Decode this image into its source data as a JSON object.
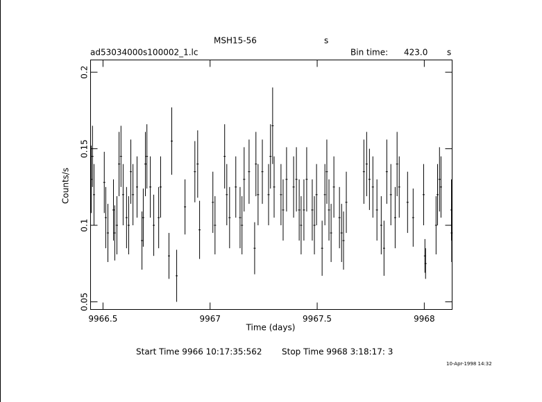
{
  "chart_data": {
    "type": "errorbar",
    "title": "MSH15-56",
    "title_unit": "s",
    "file_name": "ad53034000s100002_1.lc",
    "bin_time_label": "Bin time:",
    "bin_time": "423.0",
    "bin_time_unit": "s",
    "x_label": "Time (days)",
    "y_label": "Counts/s",
    "start_time": "Start Time  9966 10:17:35:562",
    "stop_time": "Stop Time  9968  3:18:17:  3",
    "date": "10-Apr-1998 14:32",
    "color": "#000000",
    "xlim": [
      9966.442,
      9968.13
    ],
    "ylim": [
      0.045,
      0.208
    ],
    "xticks": [
      9966.5,
      9967,
      9967.5,
      9968
    ],
    "yticks": [
      0.05,
      0.1,
      0.15,
      0.2
    ],
    "x": [
      9966.445,
      9966.451,
      9966.458,
      9966.506,
      9966.513,
      9966.523,
      9966.549,
      9966.555,
      9966.565,
      9966.575,
      9966.584,
      9966.594,
      9966.61,
      9966.62,
      9966.63,
      9966.64,
      9966.659,
      9966.682,
      9966.688,
      9966.698,
      9966.705,
      9966.721,
      9966.737,
      9966.76,
      9966.769,
      9966.808,
      9966.821,
      9966.844,
      9966.883,
      9966.929,
      9966.942,
      9966.951,
      9967.013,
      9967.023,
      9967.068,
      9967.078,
      9967.091,
      9967.12,
      9967.14,
      9967.149,
      9967.159,
      9967.182,
      9967.208,
      9967.214,
      9967.224,
      9967.244,
      9967.273,
      9967.282,
      9967.292,
      9967.299,
      9967.331,
      9967.341,
      9967.357,
      9967.39,
      9967.403,
      9967.416,
      9967.425,
      9967.438,
      9967.451,
      9967.477,
      9967.487,
      9967.497,
      9967.523,
      9967.536,
      9967.545,
      9967.555,
      9967.565,
      9967.578,
      9967.604,
      9967.614,
      9967.623,
      9967.636,
      9967.718,
      9967.731,
      9967.744,
      9967.76,
      9967.779,
      9967.799,
      9967.812,
      9967.825,
      9967.844,
      9967.864,
      9967.873,
      9967.883,
      9967.922,
      9967.948,
      9967.997,
      9968.003,
      9968.006,
      9968.055,
      9968.062,
      9968.071,
      9968.078,
      9968.127,
      9968.128
    ],
    "values": [
      0.13,
      0.145,
      0.12,
      0.128,
      0.105,
      0.095,
      0.11,
      0.095,
      0.1,
      0.14,
      0.145,
      0.12,
      0.105,
      0.1,
      0.135,
      0.12,
      0.125,
      0.09,
      0.105,
      0.14,
      0.145,
      0.125,
      0.1,
      0.105,
      0.125,
      0.08,
      0.155,
      0.067,
      0.112,
      0.135,
      0.14,
      0.097,
      0.115,
      0.1,
      0.145,
      0.12,
      0.105,
      0.125,
      0.105,
      0.1,
      0.13,
      0.135,
      0.085,
      0.14,
      0.12,
      0.135,
      0.12,
      0.145,
      0.165,
      0.125,
      0.12,
      0.11,
      0.13,
      0.125,
      0.13,
      0.11,
      0.1,
      0.11,
      0.13,
      0.11,
      0.1,
      0.12,
      0.085,
      0.12,
      0.135,
      0.11,
      0.095,
      0.125,
      0.105,
      0.095,
      0.09,
      0.115,
      0.135,
      0.14,
      0.13,
      0.125,
      0.11,
      0.1,
      0.085,
      0.135,
      0.12,
      0.105,
      0.14,
      0.125,
      0.115,
      0.105,
      0.12,
      0.08,
      0.075,
      0.1,
      0.12,
      0.13,
      0.125,
      0.11,
      0.095
    ],
    "errors": [
      0.022,
      0.02,
      0.02,
      0.02,
      0.02,
      0.019,
      0.02,
      0.018,
      0.019,
      0.021,
      0.02,
      0.02,
      0.02,
      0.019,
      0.021,
      0.02,
      0.02,
      0.019,
      0.019,
      0.021,
      0.021,
      0.02,
      0.02,
      0.02,
      0.02,
      0.015,
      0.022,
      0.017,
      0.018,
      0.02,
      0.022,
      0.019,
      0.02,
      0.019,
      0.021,
      0.02,
      0.02,
      0.02,
      0.02,
      0.019,
      0.021,
      0.021,
      0.017,
      0.021,
      0.02,
      0.021,
      0.02,
      0.021,
      0.025,
      0.02,
      0.02,
      0.02,
      0.021,
      0.02,
      0.021,
      0.02,
      0.019,
      0.02,
      0.021,
      0.02,
      0.019,
      0.02,
      0.018,
      0.02,
      0.021,
      0.02,
      0.019,
      0.02,
      0.02,
      0.019,
      0.019,
      0.02,
      0.021,
      0.021,
      0.02,
      0.02,
      0.02,
      0.019,
      0.018,
      0.021,
      0.02,
      0.02,
      0.021,
      0.02,
      0.02,
      0.019,
      0.02,
      0.011,
      0.01,
      0.019,
      0.02,
      0.021,
      0.02,
      0.02,
      0.019
    ]
  }
}
